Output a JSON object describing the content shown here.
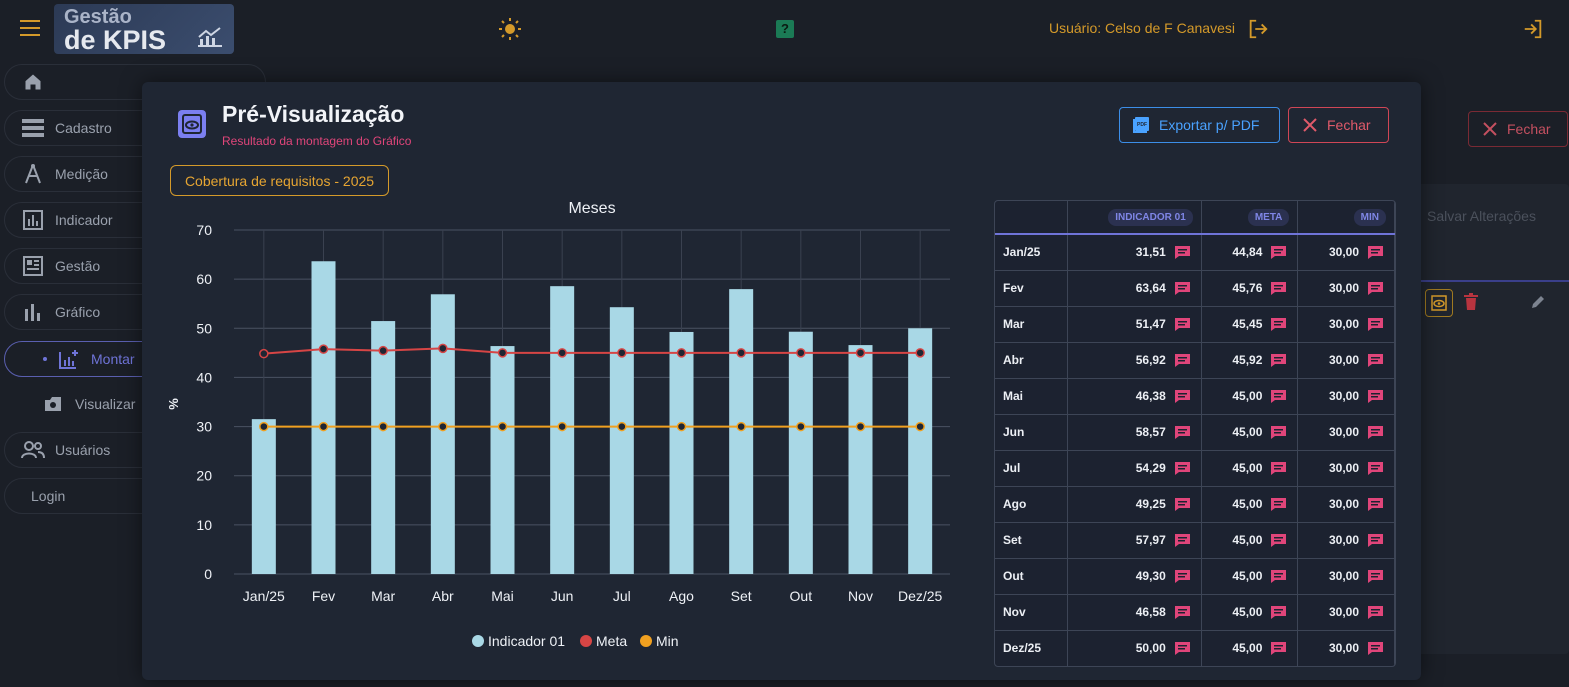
{
  "header": {
    "logo_line1": "Gestão",
    "logo_line2": "de KPIS",
    "user_label": "Usuário: Celso de F Canavesi",
    "help_label": "?"
  },
  "sidebar": {
    "items": [
      {
        "label": "",
        "icon": "home-icon"
      },
      {
        "label": "Cadastro",
        "icon": "database-icon"
      },
      {
        "label": "Medição",
        "icon": "compass-icon"
      },
      {
        "label": "Indicador",
        "icon": "bar-chart-box-icon"
      },
      {
        "label": "Gestão",
        "icon": "dashboard-icon"
      },
      {
        "label": "Gráfico",
        "icon": "bar-chart-icon"
      },
      {
        "label": "Montar",
        "icon": "chart-add-icon"
      },
      {
        "label": "Visualizar",
        "icon": "image-icon"
      },
      {
        "label": "Usuários",
        "icon": "users-icon"
      },
      {
        "label": "Login",
        "icon": ""
      }
    ]
  },
  "background": {
    "fechar_label": "Fechar",
    "salvar_label": "Salvar Alterações"
  },
  "modal": {
    "title": "Pré-Visualização",
    "subtitle": "Resultado da montagem do Gráfico",
    "export_label": "Exportar p/ PDF",
    "close_label": "Fechar",
    "chip_label": "Cobertura de requisitos - 2025"
  },
  "colors": {
    "accent": "#6f74d8",
    "bar": "#a9d8e6",
    "meta": "#d64545",
    "min": "#f0a020"
  },
  "chart_data": {
    "type": "bar",
    "title": "Meses",
    "xlabel": "",
    "ylabel": "%",
    "ylim": [
      0,
      70
    ],
    "yticks": [
      0,
      10,
      20,
      30,
      40,
      50,
      60,
      70
    ],
    "grid": true,
    "legend_position": "bottom",
    "categories": [
      "Jan/25",
      "Fev",
      "Mar",
      "Abr",
      "Mai",
      "Jun",
      "Jul",
      "Ago",
      "Set",
      "Out",
      "Nov",
      "Dez/25"
    ],
    "series": [
      {
        "name": "Indicador 01",
        "type": "bar",
        "color": "#a9d8e6",
        "values": [
          31.51,
          63.64,
          51.47,
          56.92,
          46.38,
          58.57,
          54.29,
          49.25,
          57.97,
          49.3,
          46.58,
          50.0
        ]
      },
      {
        "name": "Meta",
        "type": "line",
        "color": "#d64545",
        "values": [
          44.84,
          45.76,
          45.45,
          45.92,
          45.0,
          45.0,
          45.0,
          45.0,
          45.0,
          45.0,
          45.0,
          45.0
        ]
      },
      {
        "name": "Min",
        "type": "line",
        "color": "#f0a020",
        "values": [
          30.0,
          30.0,
          30.0,
          30.0,
          30.0,
          30.0,
          30.0,
          30.0,
          30.0,
          30.0,
          30.0,
          30.0
        ]
      }
    ]
  },
  "table": {
    "headers": [
      "",
      "INDICADOR 01",
      "META",
      "MIN"
    ],
    "rows": [
      {
        "mes": "Jan/25",
        "ind": "31,51",
        "meta": "44,84",
        "min": "30,00"
      },
      {
        "mes": "Fev",
        "ind": "63,64",
        "meta": "45,76",
        "min": "30,00"
      },
      {
        "mes": "Mar",
        "ind": "51,47",
        "meta": "45,45",
        "min": "30,00"
      },
      {
        "mes": "Abr",
        "ind": "56,92",
        "meta": "45,92",
        "min": "30,00"
      },
      {
        "mes": "Mai",
        "ind": "46,38",
        "meta": "45,00",
        "min": "30,00"
      },
      {
        "mes": "Jun",
        "ind": "58,57",
        "meta": "45,00",
        "min": "30,00"
      },
      {
        "mes": "Jul",
        "ind": "54,29",
        "meta": "45,00",
        "min": "30,00"
      },
      {
        "mes": "Ago",
        "ind": "49,25",
        "meta": "45,00",
        "min": "30,00"
      },
      {
        "mes": "Set",
        "ind": "57,97",
        "meta": "45,00",
        "min": "30,00"
      },
      {
        "mes": "Out",
        "ind": "49,30",
        "meta": "45,00",
        "min": "30,00"
      },
      {
        "mes": "Nov",
        "ind": "46,58",
        "meta": "45,00",
        "min": "30,00"
      },
      {
        "mes": "Dez/25",
        "ind": "50,00",
        "meta": "45,00",
        "min": "30,00"
      }
    ]
  }
}
